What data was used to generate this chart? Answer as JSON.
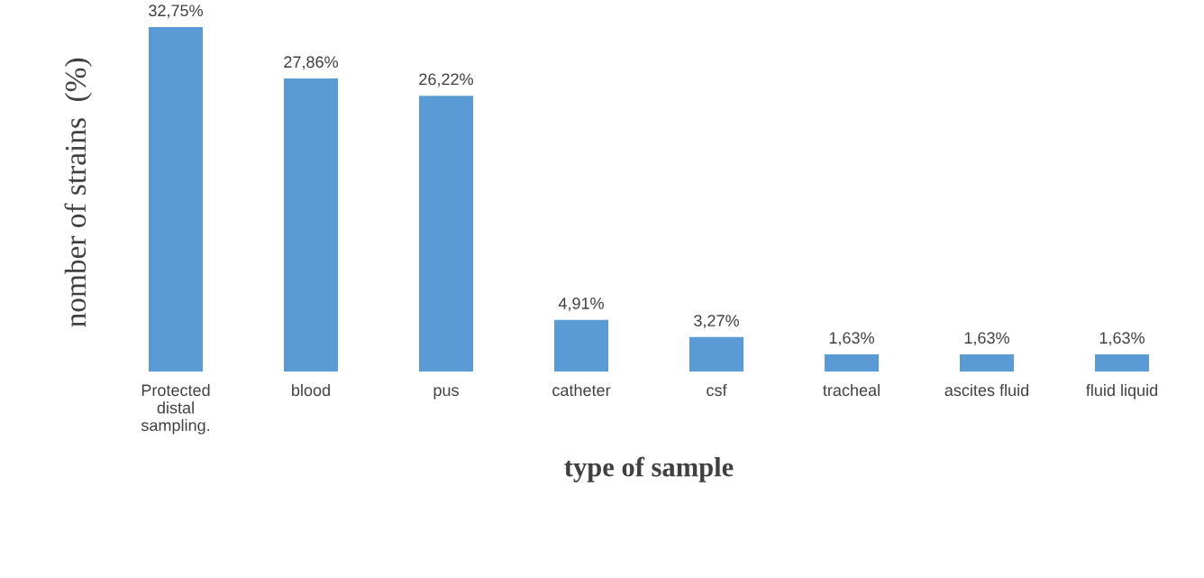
{
  "chart_data": {
    "type": "bar",
    "xlabel": "type of sample",
    "ylabel": "nomber of strains  (%)",
    "categories": [
      "Protected\ndistal\nsampling.",
      "blood",
      "pus",
      "catheter",
      "csf",
      "tracheal",
      "ascites fluid",
      "fluid liquid"
    ],
    "values": [
      32.75,
      27.86,
      26.22,
      4.91,
      3.27,
      1.63,
      1.63,
      1.63
    ],
    "value_labels": [
      "32,75%",
      "27,86%",
      "26,22%",
      "4,91%",
      "3,27%",
      "1,63%",
      "1,63%",
      "1,63%"
    ],
    "color": "#5b9bd5",
    "relative": false,
    "grid": false,
    "legend": false
  }
}
